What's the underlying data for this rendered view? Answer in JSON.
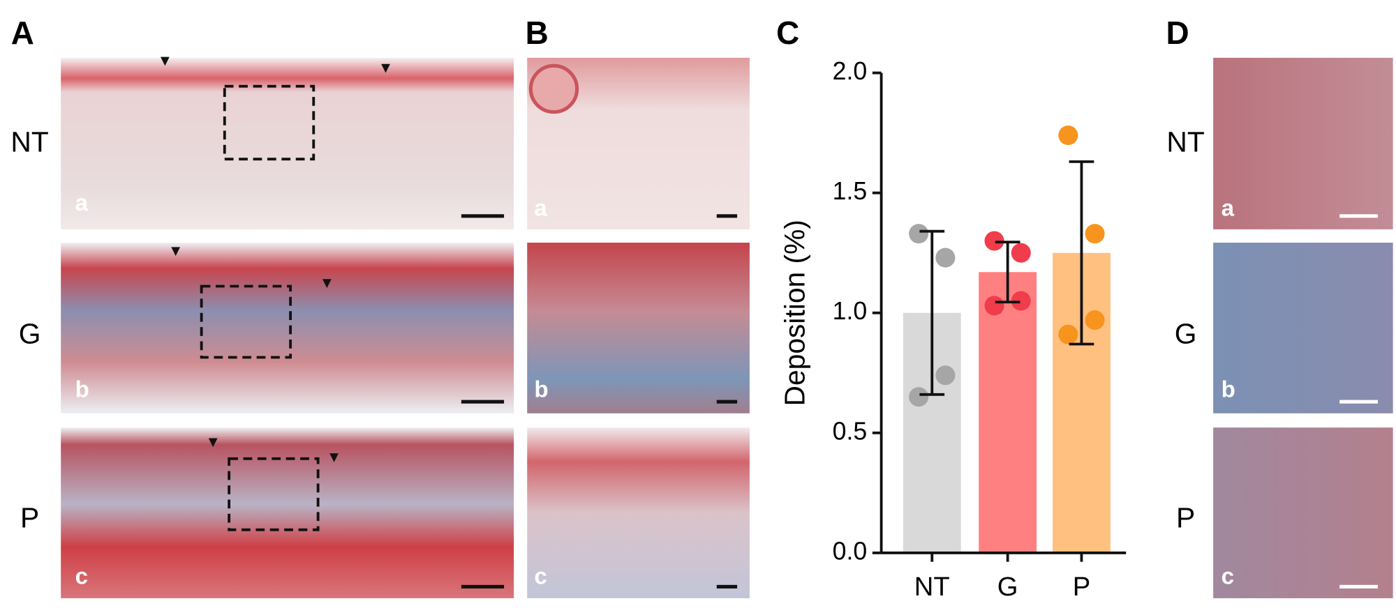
{
  "figure": {
    "panel_labels": [
      "A",
      "B",
      "C",
      "D"
    ],
    "row_labels": [
      "NT",
      "G",
      "P"
    ],
    "image_labels": [
      "a",
      "b",
      "c"
    ]
  },
  "chart_data": {
    "type": "bar",
    "y_label": "Deposition (%)",
    "categories": [
      "NT",
      "G",
      "P"
    ],
    "values": [
      1.0,
      1.17,
      1.25
    ],
    "errors": [
      0.34,
      0.125,
      0.38
    ],
    "colors": [
      "#d9d9d9",
      "#ff8080",
      "#ffc080"
    ],
    "point_colors": [
      "#a6a6a6",
      "#f03c4b",
      "#f7941d"
    ],
    "points": [
      [
        1.33,
        1.23,
        0.74,
        0.65
      ],
      [
        1.3,
        1.25,
        1.05,
        1.03
      ],
      [
        1.74,
        1.33,
        0.97,
        0.91
      ]
    ],
    "ylim": [
      0,
      2
    ],
    "yticks": [
      {
        "value": 0,
        "label": "0.0"
      },
      {
        "value": 0.5,
        "label": "0.5"
      },
      {
        "value": 1,
        "label": "1.0"
      },
      {
        "value": 1.5,
        "label": "1.5"
      },
      {
        "value": 2,
        "label": "2.0"
      }
    ]
  }
}
